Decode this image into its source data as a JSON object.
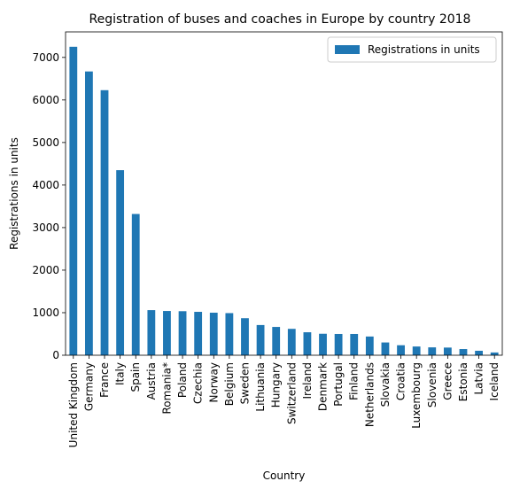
{
  "chart_data": {
    "type": "bar",
    "title": "Registration of buses and coaches in Europe by country 2018",
    "xlabel": "Country",
    "ylabel": "Registrations in units",
    "ylim": [
      0,
      7600
    ],
    "yticks": [
      0,
      1000,
      2000,
      3000,
      4000,
      5000,
      6000,
      7000
    ],
    "grid": false,
    "legend_position": "top-right",
    "bar_color": "#1f77b4",
    "categories": [
      "United Kingdom",
      "Germany",
      "France",
      "Italy",
      "Spain",
      "Austria",
      "Romania*",
      "Poland",
      "Czechia",
      "Norway",
      "Belgium",
      "Sweden",
      "Lithuania",
      "Hungary",
      "Switzerland",
      "Ireland",
      "Denmark",
      "Portugal",
      "Finland",
      "Netherlands",
      "Slovakia",
      "Croatia",
      "Luxembourg",
      "Slovenia",
      "Greece",
      "Estonia",
      "Latvia",
      "Iceland"
    ],
    "series": [
      {
        "name": "Registrations in units",
        "values": [
          7250,
          6670,
          6230,
          4350,
          3320,
          1060,
          1040,
          1035,
          1020,
          1000,
          990,
          870,
          710,
          665,
          620,
          540,
          505,
          500,
          500,
          440,
          300,
          235,
          205,
          185,
          180,
          145,
          105,
          65
        ]
      }
    ]
  }
}
